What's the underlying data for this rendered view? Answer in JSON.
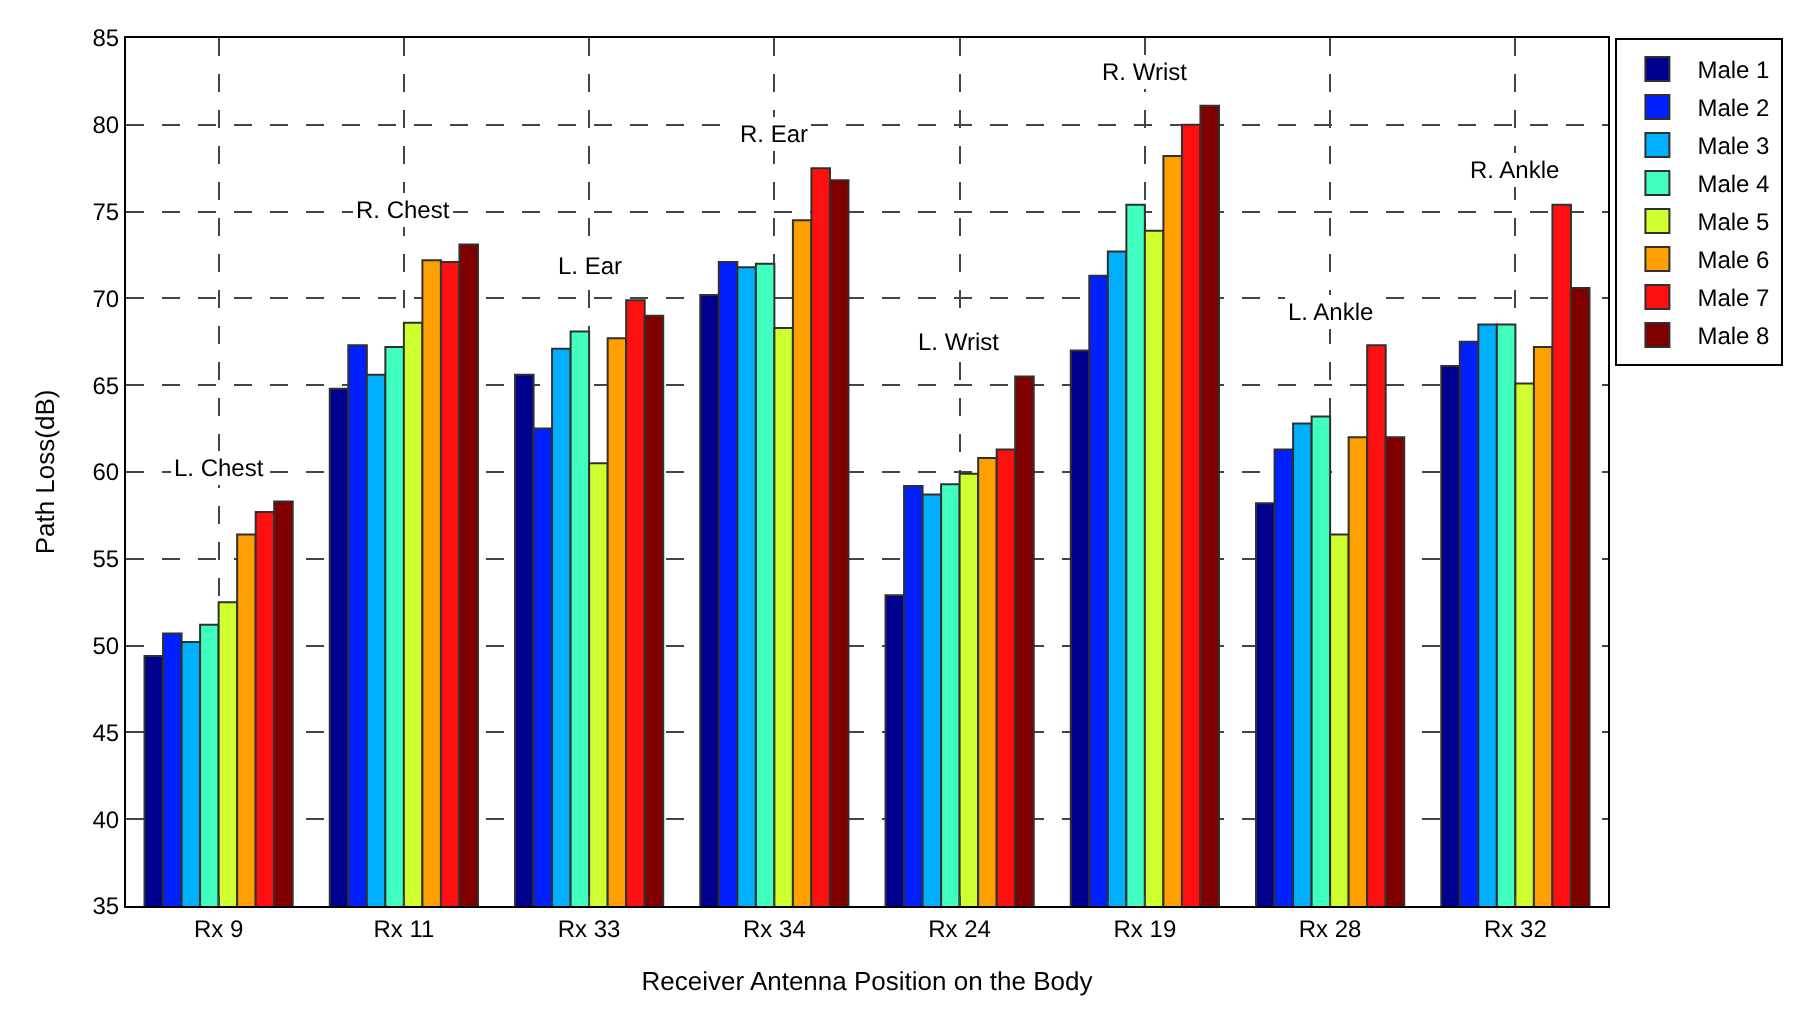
{
  "chart_data": {
    "type": "bar",
    "xlabel": "Receiver Antenna Position on the Body",
    "ylabel": "Path Loss(dB)",
    "categories": [
      "Rx 9",
      "Rx 11",
      "Rx 33",
      "Rx 34",
      "Rx 24",
      "Rx 19",
      "Rx 28",
      "Rx 32"
    ],
    "series": [
      {
        "name": "Male 1",
        "color": "#00008f",
        "values": [
          49.4,
          64.8,
          65.6,
          70.2,
          52.9,
          67.0,
          58.2,
          66.1
        ]
      },
      {
        "name": "Male 2",
        "color": "#0020ff",
        "values": [
          50.7,
          67.3,
          62.5,
          72.1,
          59.2,
          71.3,
          61.3,
          67.5
        ]
      },
      {
        "name": "Male 3",
        "color": "#00b0ff",
        "values": [
          50.2,
          65.6,
          67.1,
          71.8,
          58.7,
          72.7,
          62.8,
          68.5
        ]
      },
      {
        "name": "Male 4",
        "color": "#40ffc0",
        "values": [
          51.2,
          67.2,
          68.1,
          72.0,
          59.3,
          75.4,
          63.2,
          68.5
        ]
      },
      {
        "name": "Male 5",
        "color": "#d0ff30",
        "values": [
          52.5,
          68.6,
          60.5,
          68.3,
          59.9,
          73.9,
          56.4,
          65.1
        ]
      },
      {
        "name": "Male 6",
        "color": "#ffa000",
        "values": [
          56.4,
          72.2,
          67.7,
          74.5,
          60.8,
          78.2,
          62.0,
          67.2
        ]
      },
      {
        "name": "Male 7",
        "color": "#ff1010",
        "values": [
          57.7,
          72.1,
          69.9,
          77.5,
          61.3,
          80.0,
          67.3,
          75.4
        ]
      },
      {
        "name": "Male 8",
        "color": "#800000",
        "values": [
          58.3,
          73.1,
          69.0,
          76.8,
          65.5,
          81.1,
          62.0,
          70.6
        ]
      }
    ],
    "annotations": [
      "L. Chest",
      "R. Chest",
      "L. Ear",
      "R. Ear",
      "L. Wrist",
      "R. Wrist",
      "L. Ankle",
      "R. Ankle"
    ],
    "ylim": [
      35,
      85
    ],
    "yticks": [
      35,
      40,
      45,
      50,
      55,
      60,
      65,
      70,
      75,
      80,
      85
    ],
    "grid": true,
    "legend": "top right"
  }
}
